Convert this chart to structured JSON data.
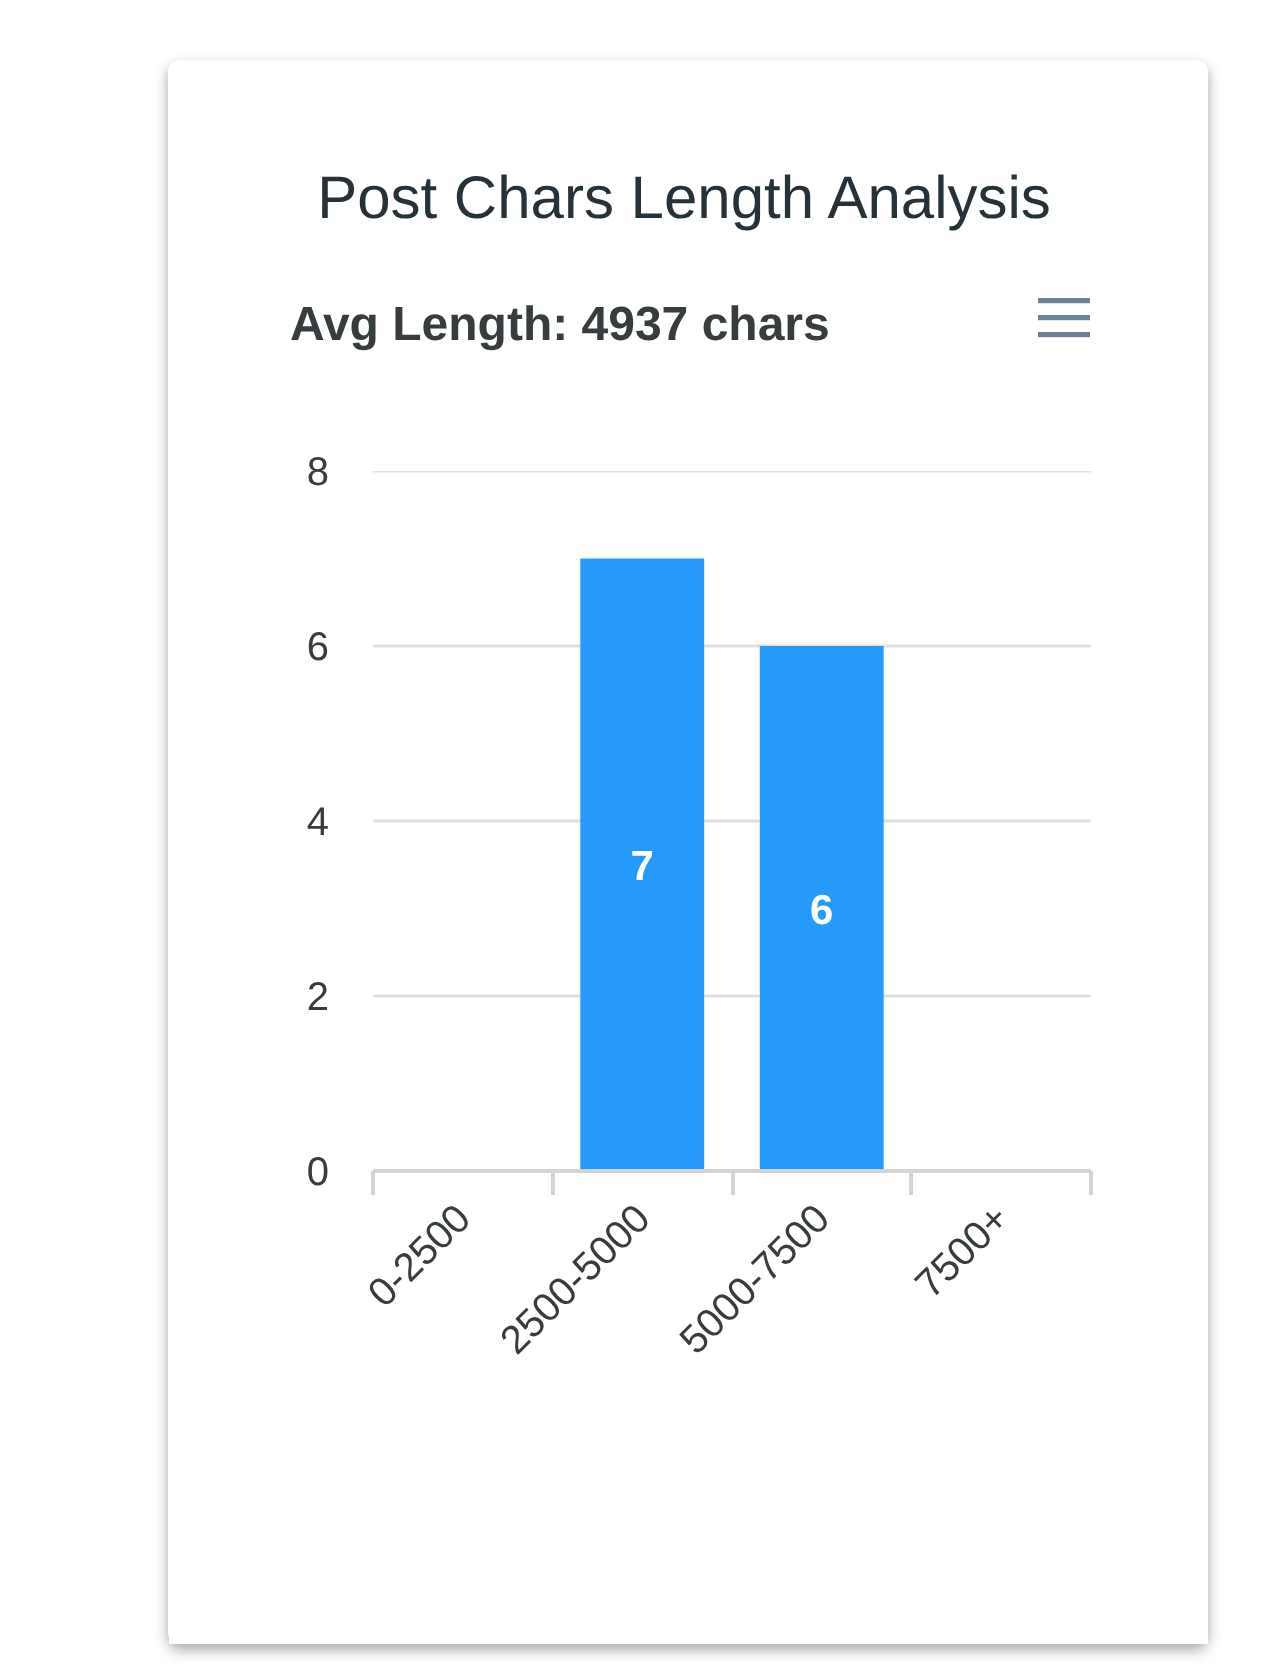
{
  "chart_data": {
    "type": "bar",
    "title": "Post Chars Length Analysis",
    "subtitle": "Avg Length: 4937 chars",
    "categories": [
      "0-2500",
      "2500-5000",
      "5000-7500",
      "7500+"
    ],
    "values": [
      0,
      7,
      6,
      0
    ],
    "color": "#269afb",
    "value_labels": [
      null,
      "7",
      "6",
      null
    ],
    "ylim": [
      0,
      8
    ],
    "yticks": [
      0,
      2,
      4,
      6,
      8
    ],
    "grid": "y"
  }
}
